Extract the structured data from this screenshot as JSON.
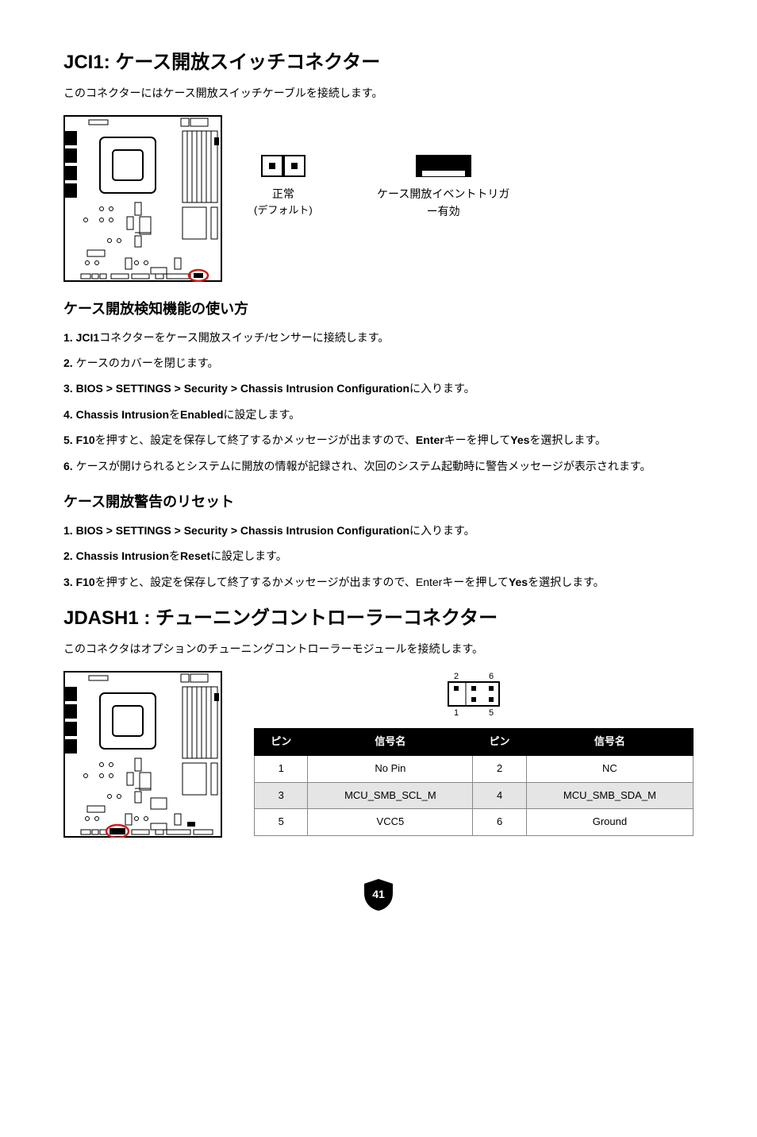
{
  "jci1": {
    "title": "JCI1: ケース開放スイッチコネクター",
    "subtitle": "このコネクターにはケース開放スイッチケーブルを接続します。",
    "jumper_normal_label": "正常",
    "jumper_normal_sub": "(デフォルト)",
    "jumper_trigger_label": "ケース開放イベントトリガー有効",
    "howto_title": "ケース開放検知機能の使い方",
    "howto_steps": [
      "<b>JCI1</b>コネクターをケース開放スイッチ/センサーに接続します。",
      "ケースのカバーを閉じます。",
      "<b>BIOS > SETTINGS > Security > Chassis Intrusion Configuration</b>に入ります。",
      "<b>Chassis Intrusion</b>を<b>Enabled</b>に設定します。",
      "<b>F10</b>を押すと、設定を保存して終了するかメッセージが出ますので、<b>Enter</b>キーを押して<b>Yes</b>を選択します。",
      "ケースが開けられるとシステムに開放の情報が記録され、次回のシステム起動時に警告メッセージが表示されます。"
    ],
    "reset_title": "ケース開放警告のリセット",
    "reset_steps": [
      "<b>BIOS > SETTINGS > Security > Chassis Intrusion Configuration</b>に入ります。",
      "<b>Chassis Intrusion</b>を<b>Reset</b>に設定します。",
      "<b>F10</b>を押すと、設定を保存して終了するかメッセージが出ますので、Enterキーを押して<b>Yes</b>を選択します。"
    ]
  },
  "jdash1": {
    "title": "JDASH1 : チューニングコントローラーコネクター",
    "subtitle": "このコネクタはオプションのチューニングコントローラーモジュールを接続します。",
    "table_headers": {
      "pin": "ピン",
      "signal": "信号名"
    },
    "rows": [
      {
        "pin_a": "1",
        "sig_a": "No Pin",
        "pin_b": "2",
        "sig_b": "NC",
        "shaded": false
      },
      {
        "pin_a": "3",
        "sig_a": "MCU_SMB_SCL_M",
        "pin_b": "4",
        "sig_b": "MCU_SMB_SDA_M",
        "shaded": true
      },
      {
        "pin_a": "5",
        "sig_a": "VCC5",
        "pin_b": "6",
        "sig_b": "Ground",
        "shaded": false
      }
    ],
    "pin_labels": {
      "tl": "2",
      "tr": "6",
      "bl": "1",
      "br": "5"
    }
  },
  "page_number": "41",
  "colors": {
    "black": "#000000",
    "white": "#ffffff",
    "gray_border": "#888888",
    "gray_fill": "#e5e5e5",
    "highlight": "#d01c1c"
  }
}
